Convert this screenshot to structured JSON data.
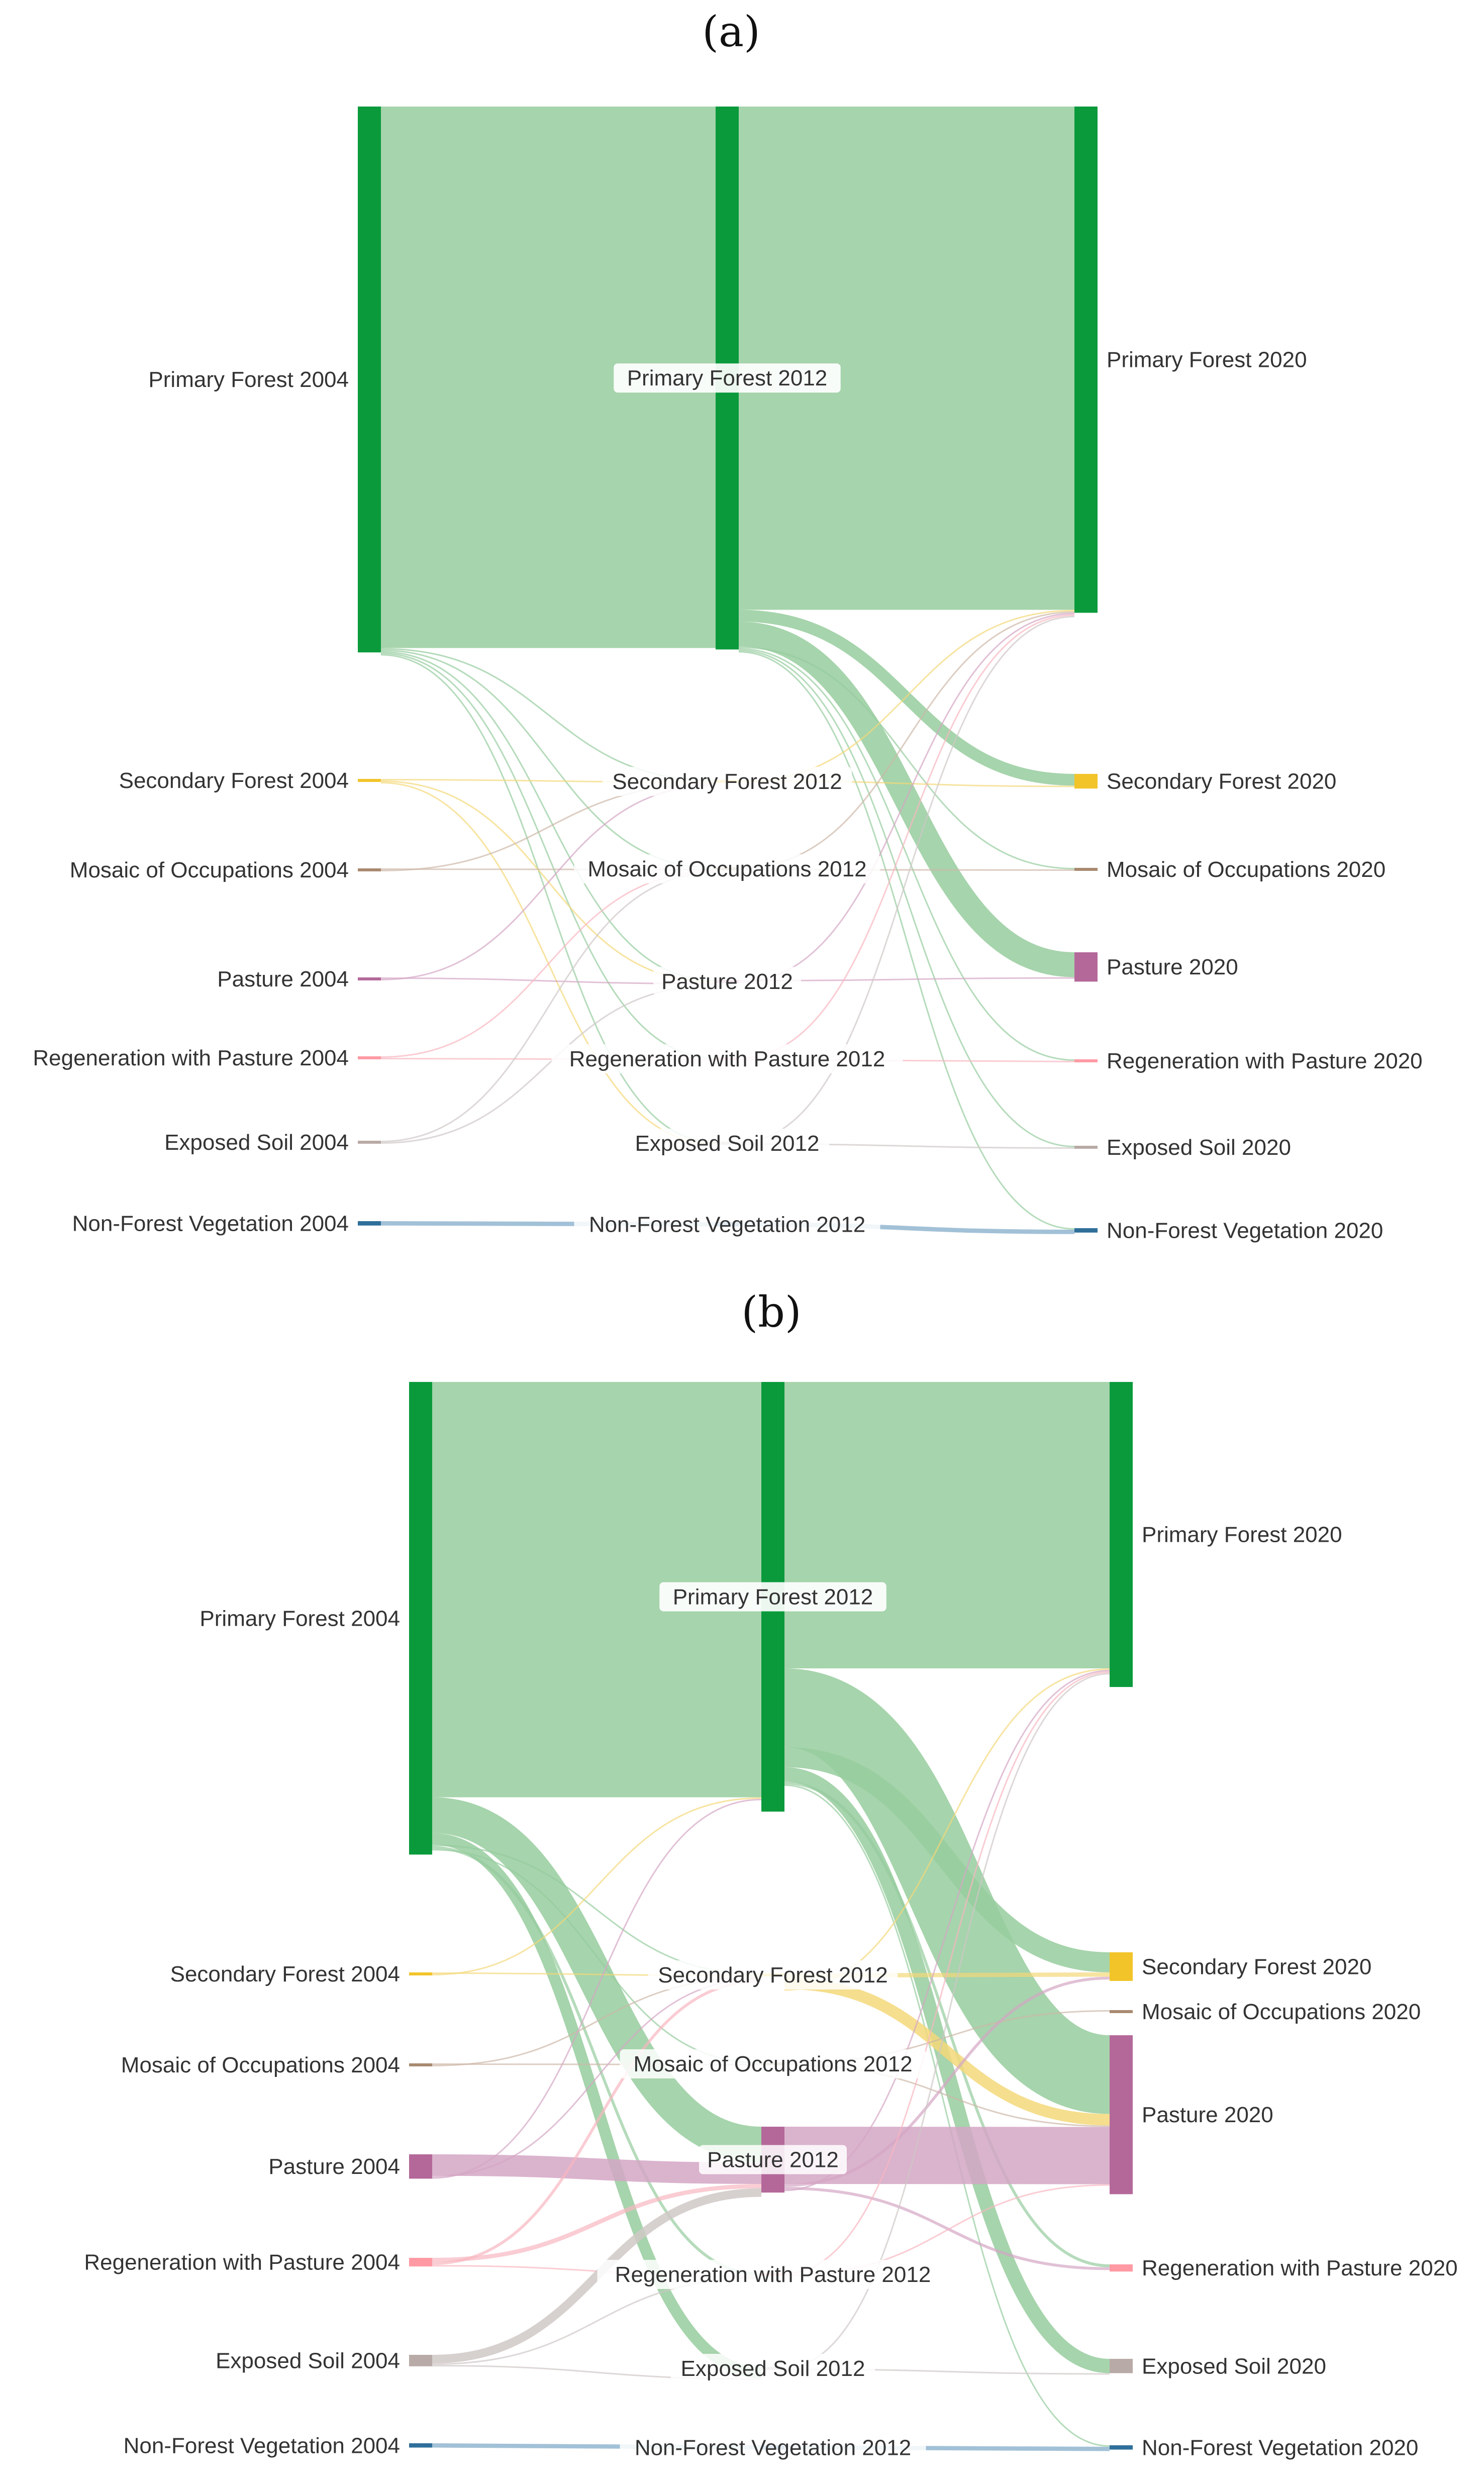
{
  "chart_data": [
    {
      "type": "sankey",
      "panel_label": "(a)",
      "columns": [
        [
          "Primary Forest 2004",
          "Secondary Forest 2004",
          "Mosaic of Occupations 2004",
          "Pasture 2004",
          "Regeneration with Pasture 2004",
          "Exposed Soil 2004",
          "Non-Forest Vegetation 2004"
        ],
        [
          "Primary Forest 2012",
          "Secondary Forest 2012",
          "Mosaic of Occupations 2012",
          "Pasture 2012",
          "Regeneration with Pasture 2012",
          "Exposed Soil 2012",
          "Non-Forest Vegetation 2012"
        ],
        [
          "Primary Forest 2020",
          "Secondary Forest 2020",
          "Mosaic of Occupations 2020",
          "Pasture 2020",
          "Regeneration with Pasture 2020",
          "Exposed Soil 2020",
          "Non-Forest Vegetation 2020"
        ]
      ],
      "node_values": [
        [
          372,
          1,
          1,
          1,
          1,
          1,
          3
        ],
        [
          370,
          1,
          1,
          1,
          1,
          1,
          3
        ],
        [
          345,
          10,
          1,
          20,
          1,
          1,
          3
        ]
      ],
      "links_2004_2012": [
        {
          "source": 0,
          "target": 0,
          "value": 369
        },
        {
          "source": 0,
          "target": 1,
          "value": 0.5
        },
        {
          "source": 0,
          "target": 2,
          "value": 0.5
        },
        {
          "source": 0,
          "target": 3,
          "value": 0.5
        },
        {
          "source": 0,
          "target": 4,
          "value": 0.5
        },
        {
          "source": 0,
          "target": 5,
          "value": 0.5
        },
        {
          "source": 1,
          "target": 1,
          "value": 0.5
        },
        {
          "source": 1,
          "target": 3,
          "value": 0.3
        },
        {
          "source": 1,
          "target": 5,
          "value": 0.3
        },
        {
          "source": 2,
          "target": 2,
          "value": 0.5
        },
        {
          "source": 2,
          "target": 1,
          "value": 0.3
        },
        {
          "source": 3,
          "target": 3,
          "value": 0.5
        },
        {
          "source": 3,
          "target": 1,
          "value": 0.3
        },
        {
          "source": 4,
          "target": 2,
          "value": 0.3
        },
        {
          "source": 4,
          "target": 4,
          "value": 0.3
        },
        {
          "source": 5,
          "target": 2,
          "value": 0.3
        },
        {
          "source": 5,
          "target": 3,
          "value": 0.3
        },
        {
          "source": 6,
          "target": 6,
          "value": 3
        }
      ],
      "links_2012_2020": [
        {
          "source": 0,
          "target": 0,
          "value": 343
        },
        {
          "source": 0,
          "target": 1,
          "value": 8
        },
        {
          "source": 0,
          "target": 3,
          "value": 17
        },
        {
          "source": 0,
          "target": 2,
          "value": 0.5
        },
        {
          "source": 0,
          "target": 4,
          "value": 0.5
        },
        {
          "source": 0,
          "target": 5,
          "value": 0.5
        },
        {
          "source": 0,
          "target": 6,
          "value": 0.3
        },
        {
          "source": 1,
          "target": 1,
          "value": 1
        },
        {
          "source": 1,
          "target": 0,
          "value": 0.3
        },
        {
          "source": 2,
          "target": 0,
          "value": 0.3
        },
        {
          "source": 2,
          "target": 2,
          "value": 0.3
        },
        {
          "source": 3,
          "target": 3,
          "value": 1
        },
        {
          "source": 3,
          "target": 0,
          "value": 0.3
        },
        {
          "source": 4,
          "target": 0,
          "value": 0.3
        },
        {
          "source": 4,
          "target": 4,
          "value": 0.3
        },
        {
          "source": 5,
          "target": 0,
          "value": 0.3
        },
        {
          "source": 5,
          "target": 5,
          "value": 0.3
        },
        {
          "source": 6,
          "target": 6,
          "value": 3
        }
      ]
    },
    {
      "type": "sankey",
      "panel_label": "(b)",
      "columns": [
        [
          "Primary Forest 2004",
          "Secondary Forest 2004",
          "Mosaic of Occupations 2004",
          "Pasture 2004",
          "Regeneration with Pasture 2004",
          "Exposed Soil 2004",
          "Non-Forest Vegetation 2004"
        ],
        [
          "Primary Forest 2012",
          "Secondary Forest 2012",
          "Mosaic of Occupations 2012",
          "Pasture 2012",
          "Regeneration with Pasture 2012",
          "Exposed Soil 2012",
          "Non-Forest Vegetation 2012"
        ],
        [
          "Primary Forest 2020",
          "Secondary Forest 2020",
          "Mosaic of Occupations 2020",
          "Pasture 2020",
          "Regeneration with Pasture 2020",
          "Exposed Soil 2020",
          "Non-Forest Vegetation 2020"
        ]
      ],
      "node_values": [
        [
          330,
          1,
          1,
          17,
          6,
          8,
          3
        ],
        [
          300,
          1,
          1,
          46,
          2,
          1,
          3
        ],
        [
          213,
          20,
          1,
          111,
          5,
          10,
          3
        ]
      ],
      "links_2004_2012": [
        {
          "source": 0,
          "target": 0,
          "value": 290
        },
        {
          "source": 0,
          "target": 3,
          "value": 25
        },
        {
          "source": 0,
          "target": 5,
          "value": 8
        },
        {
          "source": 0,
          "target": 1,
          "value": 1
        },
        {
          "source": 0,
          "target": 4,
          "value": 2
        },
        {
          "source": 0,
          "target": 2,
          "value": 1
        },
        {
          "source": 1,
          "target": 1,
          "value": 0.5
        },
        {
          "source": 1,
          "target": 0,
          "value": 0.5
        },
        {
          "source": 2,
          "target": 2,
          "value": 0.5
        },
        {
          "source": 2,
          "target": 1,
          "value": 0.5
        },
        {
          "source": 3,
          "target": 3,
          "value": 15
        },
        {
          "source": 3,
          "target": 1,
          "value": 1
        },
        {
          "source": 3,
          "target": 0,
          "value": 1
        },
        {
          "source": 4,
          "target": 3,
          "value": 3
        },
        {
          "source": 4,
          "target": 1,
          "value": 2
        },
        {
          "source": 4,
          "target": 4,
          "value": 1
        },
        {
          "source": 5,
          "target": 3,
          "value": 6
        },
        {
          "source": 5,
          "target": 4,
          "value": 1
        },
        {
          "source": 5,
          "target": 5,
          "value": 1
        },
        {
          "source": 6,
          "target": 6,
          "value": 3
        }
      ],
      "links_2012_2020": [
        {
          "source": 0,
          "target": 0,
          "value": 200
        },
        {
          "source": 0,
          "target": 3,
          "value": 55
        },
        {
          "source": 0,
          "target": 1,
          "value": 14
        },
        {
          "source": 0,
          "target": 5,
          "value": 10
        },
        {
          "source": 0,
          "target": 4,
          "value": 2
        },
        {
          "source": 0,
          "target": 6,
          "value": 1
        },
        {
          "source": 1,
          "target": 1,
          "value": 3
        },
        {
          "source": 1,
          "target": 3,
          "value": 8
        },
        {
          "source": 1,
          "target": 0,
          "value": 1
        },
        {
          "source": 2,
          "target": 2,
          "value": 1
        },
        {
          "source": 2,
          "target": 3,
          "value": 1
        },
        {
          "source": 3,
          "target": 3,
          "value": 40
        },
        {
          "source": 3,
          "target": 1,
          "value": 2
        },
        {
          "source": 3,
          "target": 4,
          "value": 2
        },
        {
          "source": 3,
          "target": 0,
          "value": 1
        },
        {
          "source": 4,
          "target": 0,
          "value": 1
        },
        {
          "source": 4,
          "target": 3,
          "value": 1
        },
        {
          "source": 5,
          "target": 0,
          "value": 1
        },
        {
          "source": 5,
          "target": 5,
          "value": 1
        },
        {
          "source": 6,
          "target": 6,
          "value": 3
        }
      ]
    }
  ],
  "colors": {
    "node": [
      "#0a9a3c",
      "#f2c42a",
      "#a88a70",
      "#b4689a",
      "#ff9aa4",
      "#b8aaa6",
      "#2f6f9a"
    ],
    "link": [
      "#96cc9e",
      "#f3d879",
      "#cdb8a8",
      "#d4a6c4",
      "#f8b6c0",
      "#cfc8c6",
      "#7aa6c6"
    ]
  }
}
